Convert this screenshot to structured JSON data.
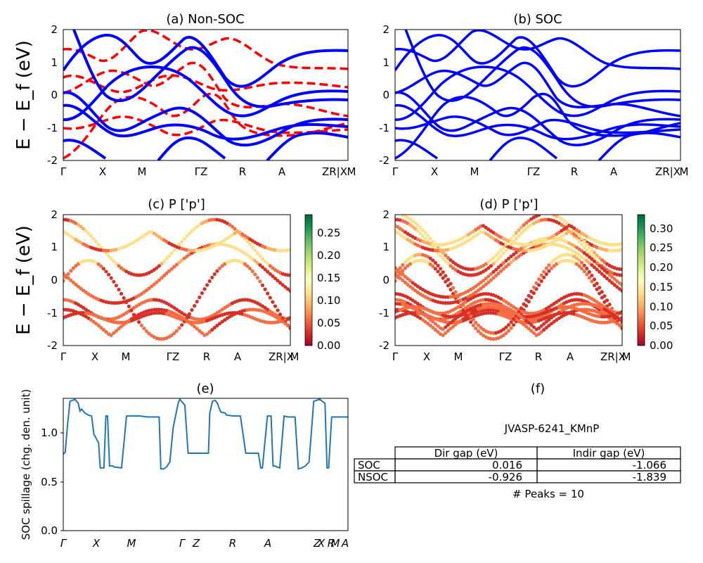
{
  "chart_data": [
    {
      "type": "line",
      "panel": "a",
      "title": "(a) Non-SOC",
      "ylabel": "E − E_f (eV)",
      "ylim": [
        -2,
        2
      ],
      "yticks": [
        -2,
        -1,
        0,
        1,
        2
      ],
      "kpath_labels": [
        "Γ",
        "X",
        "M",
        "ΓZ",
        "R",
        "A",
        "ZR|X",
        "M"
      ],
      "series": [
        {
          "color": "#0000ff",
          "style": "solid"
        },
        {
          "color": "#ff0000",
          "style": "dashed"
        }
      ]
    },
    {
      "type": "line",
      "panel": "b",
      "title": "(b) SOC",
      "ylim": [
        -2,
        2
      ],
      "yticks": [
        -2,
        -1,
        0,
        1,
        2
      ],
      "kpath_labels": [
        "Γ",
        "X",
        "M",
        "ΓZ",
        "R",
        "A",
        "ZR|X",
        "M"
      ],
      "series": [
        {
          "color": "#0000ff",
          "style": "solid"
        }
      ]
    },
    {
      "type": "scatter",
      "panel": "c",
      "title": "(c)  P ['p']",
      "ylabel": "E − E_f (eV)",
      "ylim": [
        -2,
        2
      ],
      "yticks": [
        -2,
        -1,
        0,
        1,
        2
      ],
      "kpath_labels": [
        "Γ",
        "X",
        "M",
        "ΓZ",
        "R",
        "A",
        "ZR|X",
        "M"
      ],
      "colorbar": {
        "range": [
          0,
          0.29
        ],
        "ticks": [
          "0.00",
          "0.05",
          "0.10",
          "0.15",
          "0.20",
          "0.25"
        ],
        "cmap": "RdYlGn"
      }
    },
    {
      "type": "scatter",
      "panel": "d",
      "title": "(d) P ['p']",
      "ylim": [
        -2,
        2
      ],
      "yticks": [
        -2,
        -1,
        0,
        1,
        2
      ],
      "kpath_labels": [
        "Γ",
        "X",
        "M",
        "ΓZ",
        "R",
        "A",
        "ZR|X",
        "M"
      ],
      "colorbar": {
        "range": [
          0,
          0.335
        ],
        "ticks": [
          "0.00",
          "0.05",
          "0.10",
          "0.15",
          "0.20",
          "0.25",
          "0.30"
        ],
        "cmap": "RdYlGn"
      }
    },
    {
      "type": "line",
      "panel": "e",
      "title": "(e)",
      "ylabel": "SOC spillage (chg. den. unit)",
      "ylim": [
        0,
        1.35
      ],
      "yticks": [
        "0.0",
        "0.5",
        "1.0"
      ],
      "xticks": [
        "Γ",
        "X",
        "M",
        "Γ",
        "Z",
        "R",
        "A",
        "Z",
        "X",
        "R",
        "M",
        "A"
      ],
      "color": "#1f77b4",
      "x": [
        0,
        0.6,
        1.2,
        2.0,
        3.5,
        4.5,
        5.0,
        5.5,
        6.5,
        7.5,
        8.5,
        9.2,
        9.6,
        10.2,
        10.6,
        11.1,
        11.6,
        12.2,
        12.8,
        13.3,
        13.9,
        14.3,
        14.9,
        15.2,
        17.5,
        19.0,
        23.0,
        25.3,
        25.8,
        27.0,
        28.0,
        28.8,
        29.3,
        30.2,
        31.0,
        32.0,
        33.0,
        34.5,
        35.0,
        36.5,
        37.5,
        43.0,
        43.6,
        44.0,
        44.8,
        45.6,
        46.3,
        46.8,
        47.3,
        48.6,
        49.0,
        51.0,
        53.2,
        54.8,
        55.6,
        56.6,
        58.6,
        59.3,
        59.8,
        61.3,
        62.4,
        63.0,
        63.6,
        64.1,
        65.0,
        66.3,
        67.5,
        68.2,
        68.9,
        69.6,
        70.6,
        71.6,
        72.7,
        73.8,
        74.6,
        75.2,
        77.0,
        78.6,
        79.2,
        79.7,
        80.6,
        81.4,
        81.8,
        83.5,
        85.5
      ],
      "y": [
        0.78,
        0.8,
        1.05,
        1.32,
        1.34,
        1.3,
        1.22,
        1.24,
        1.2,
        1.18,
        1.17,
        0.98,
        0.96,
        0.92,
        0.9,
        0.64,
        0.64,
        0.64,
        1.17,
        1.17,
        0.66,
        0.66,
        0.66,
        0.65,
        0.64,
        1.17,
        1.17,
        1.16,
        1.16,
        1.16,
        1.16,
        1.16,
        0.63,
        0.63,
        0.65,
        0.7,
        1.05,
        1.3,
        1.34,
        1.28,
        0.79,
        0.79,
        0.79,
        1.2,
        1.32,
        1.33,
        1.3,
        1.25,
        1.21,
        1.2,
        1.18,
        1.17,
        1.17,
        0.79,
        0.79,
        0.79,
        0.79,
        0.64,
        0.64,
        1.17,
        1.17,
        0.66,
        0.66,
        0.65,
        0.64,
        1.17,
        1.16,
        1.16,
        1.16,
        1.16,
        0.63,
        0.64,
        0.66,
        0.7,
        1.05,
        1.32,
        1.34,
        1.3,
        0.64,
        0.64,
        1.16,
        1.16,
        1.16,
        1.16,
        1.16
      ]
    }
  ],
  "table": {
    "title": "(f)",
    "name": "JVASP-6241_KMnP",
    "headers": [
      "",
      "Dir gap (eV)",
      "Indir gap (eV)"
    ],
    "rows": [
      [
        "SOC",
        "0.016",
        "-1.066"
      ],
      [
        "NSOC",
        "-0.926",
        "-1.839"
      ]
    ],
    "peaks": "# Peaks = 10"
  },
  "colors": {
    "nsoc_band": "#ff0000",
    "soc_band": "#0000ff",
    "spillage": "#1f77b4"
  }
}
